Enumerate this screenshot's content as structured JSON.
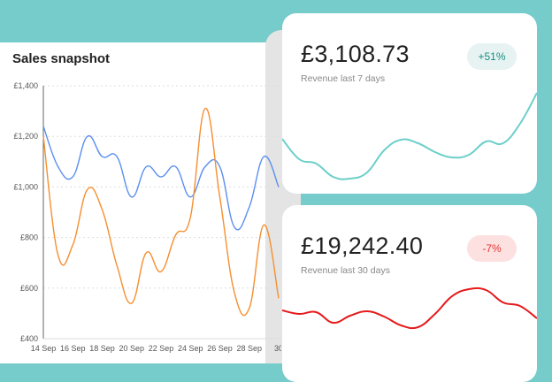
{
  "title": "Sales snapshot",
  "colors": {
    "background": "#76cbcb",
    "series_blue": "#5b8ff0",
    "series_orange": "#f58f2f",
    "spark_teal": "#6ccfc9",
    "spark_red": "#e5191b"
  },
  "chart_data": [
    {
      "type": "line",
      "title": "Sales snapshot",
      "x": [
        "14 Sep",
        "15 Sep",
        "16 Sep",
        "17 Sep",
        "18 Sep",
        "19 Sep",
        "20 Sep",
        "21 Sep",
        "22 Sep",
        "23 Sep",
        "24 Sep",
        "25 Sep",
        "26 Sep",
        "27 Sep",
        "28 Sep",
        "29 Sep",
        "30 Sep"
      ],
      "x_tick_labels": [
        "14 Sep",
        "16 Sep",
        "18 Sep",
        "20 Sep",
        "22 Sep",
        "24 Sep",
        "26 Sep",
        "28 Sep",
        "30"
      ],
      "y_tick_labels": [
        "£1,400",
        "£1,200",
        "£1,000",
        "£800",
        "£600",
        "£400"
      ],
      "ylim": [
        400,
        1400
      ],
      "grid": true,
      "series": [
        {
          "color": "#5b8ff0",
          "values": [
            1240,
            1080,
            1040,
            1200,
            1120,
            1120,
            960,
            1080,
            1040,
            1080,
            960,
            1080,
            1080,
            840,
            920,
            1120,
            1000
          ]
        },
        {
          "color": "#f58f2f",
          "values": [
            1200,
            730,
            770,
            990,
            910,
            690,
            540,
            740,
            665,
            810,
            880,
            1310,
            960,
            580,
            520,
            850,
            560
          ]
        }
      ]
    },
    {
      "type": "line",
      "amount": "£3,108.73",
      "label": "Revenue last 7 days",
      "badge": "+51%",
      "color": "#6ccfc9",
      "values": [
        63,
        40,
        35,
        20,
        18,
        25,
        50,
        62,
        58,
        48,
        42,
        45,
        60,
        58,
        80,
        115
      ]
    },
    {
      "type": "line",
      "amount": "£19,242.40",
      "label": "Revenue last 30 days",
      "badge": "-7%",
      "color": "#e5191b",
      "values": [
        49,
        45,
        47,
        35,
        43,
        48,
        42,
        32,
        30,
        45,
        65,
        73,
        72,
        58,
        54,
        40
      ]
    }
  ]
}
